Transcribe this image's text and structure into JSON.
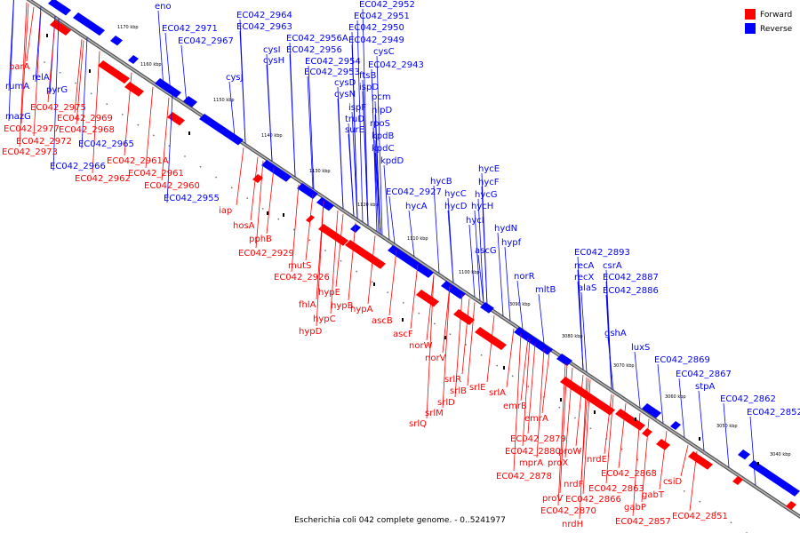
{
  "caption": "Escherichia coli 042 complete genome. - 0..5241977",
  "legend": [
    {
      "label": "Forward",
      "color": "#ff0000"
    },
    {
      "label": "Reverse",
      "color": "#0000ff"
    }
  ],
  "colors": {
    "forward": "#ff0000",
    "reverse": "#0000ff",
    "backbone": "#808080"
  },
  "ticks": [
    "1170 kbp",
    "1160 kbp",
    "1150 kbp",
    "1140 kbp",
    "1130 kbp",
    "1120 kbp",
    "1110 kbp",
    "1100 kbp",
    "3090 kbp",
    "3080 kbp",
    "3070 kbp",
    "3060 kbp",
    "3050 kbp",
    "3040 kbp"
  ],
  "reverse_labels": [
    "eno",
    "EC042_2964",
    "EC042_2971",
    "EC042_2963",
    "EC042_2967",
    "EC042_2952",
    "EC042_2951",
    "EC042_2950",
    "EC042_2956A",
    "EC042_2949",
    "EC042_2956",
    "cysI",
    "cysC",
    "cysH",
    "EC042_2954",
    "EC042_2943",
    "EC042_2953",
    "cysD",
    "ftsB",
    "cysJ",
    "ispD",
    "cysN",
    "pcm",
    "ispF",
    "nlpD",
    "truD",
    "rpoS",
    "surE",
    "kpdB",
    "kpdC",
    "kpdD",
    "relA",
    "rumA",
    "pyrG",
    "mazG",
    "EC042_2965",
    "EC042_2966",
    "EC042_2955",
    "EC042_2927",
    "hycE",
    "hycB",
    "hycF",
    "hycC",
    "hycG",
    "hycA",
    "hycD",
    "hycH",
    "hycI",
    "hydN",
    "ascG",
    "hypf",
    "norR",
    "EC042_2893",
    "recA",
    "csrA",
    "recX",
    "mltB",
    "EC042_2887",
    "alaS",
    "EC042_2886",
    "gshA",
    "luxS",
    "EC042_2869",
    "EC042_2867",
    "stpA",
    "EC042_2862",
    "EC042_2852"
  ],
  "forward_labels": [
    "barA",
    "EC042_2975",
    "EC042_2969",
    "EC042_2968",
    "EC042_2977",
    "EC042_2972",
    "EC042_2973",
    "EC042_2961A",
    "EC042_2961",
    "EC042_2962",
    "EC042_2960",
    "iap",
    "hosA",
    "pphB",
    "EC042_2929",
    "mutS",
    "EC042_2926",
    "hypE",
    "fhlA",
    "hypB",
    "hypA",
    "hypC",
    "hypD",
    "ascB",
    "ascF",
    "norW",
    "norV",
    "srlR",
    "srlB",
    "srlE",
    "srlA",
    "srlD",
    "srlM",
    "srlQ",
    "emrB",
    "emrA",
    "EC042_2879",
    "EC042_2880",
    "proW",
    "mprA",
    "proX",
    "EC042_2878",
    "nrdE",
    "EC042_2868",
    "nrdF",
    "EC042_2863",
    "proV",
    "EC042_2866",
    "gabT",
    "EC042_2870",
    "gabP",
    "csiD",
    "nrdH",
    "EC042_2857",
    "EC042_2851"
  ]
}
